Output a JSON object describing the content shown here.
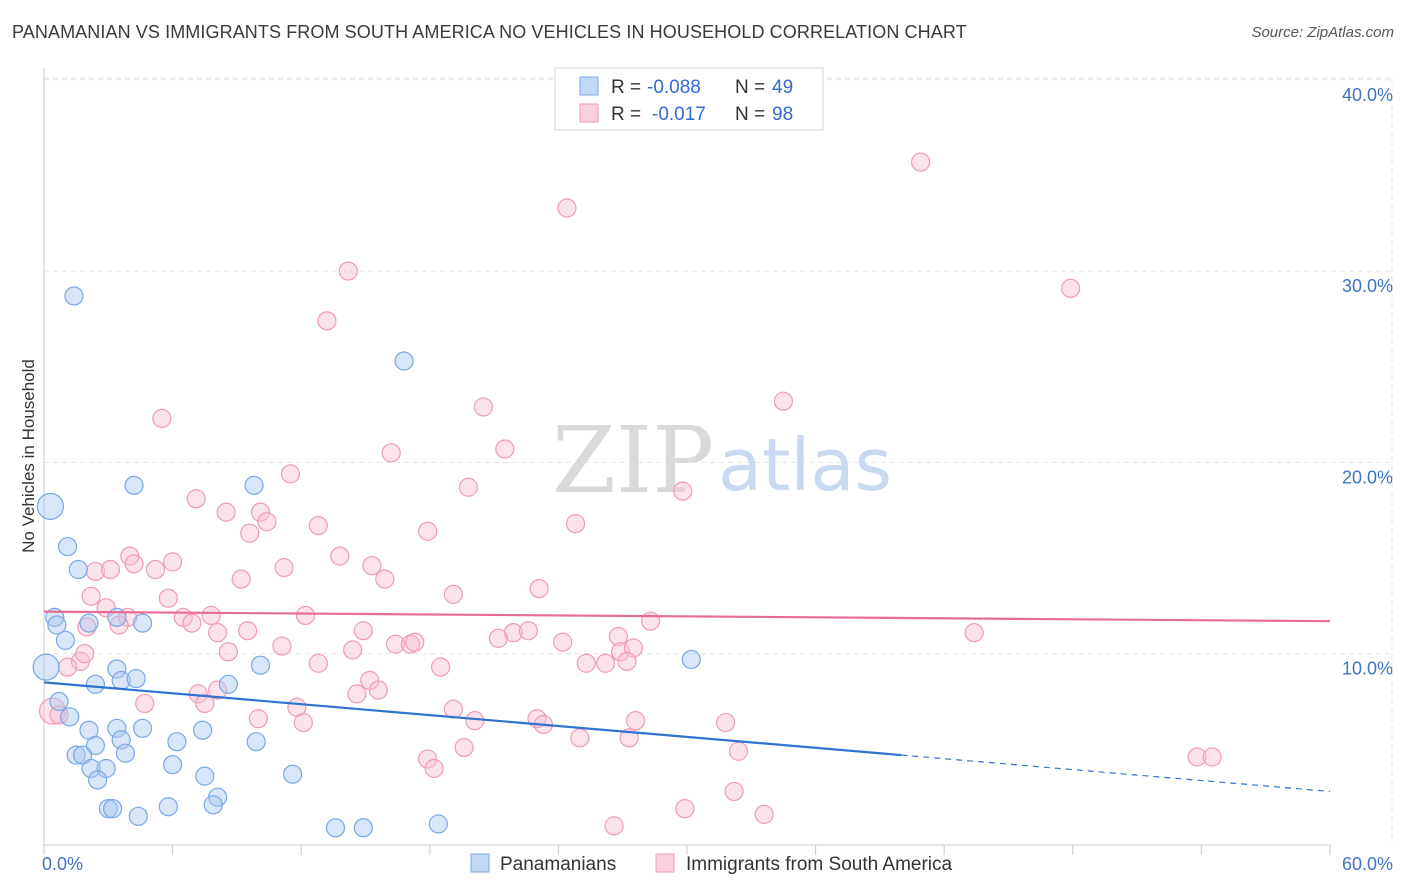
{
  "title": "PANAMANIAN VS IMMIGRANTS FROM SOUTH AMERICA NO VEHICLES IN HOUSEHOLD CORRELATION CHART",
  "source": "Source: ZipAtlas.com",
  "watermark": {
    "zip": "ZIP",
    "atlas": "atlas"
  },
  "legend": {
    "r_label": "R =",
    "n_label": "N =",
    "rows": [
      {
        "series": "Panamanians",
        "r": "-0.088",
        "n": "49"
      },
      {
        "series": "Immigrants from South America",
        "r": "-0.017",
        "n": "98"
      }
    ]
  },
  "chart_data": {
    "type": "scatter",
    "title": "PANAMANIAN VS IMMIGRANTS FROM SOUTH AMERICA NO VEHICLES IN HOUSEHOLD CORRELATION CHART",
    "xlabel": "",
    "ylabel": "No Vehicles in Household",
    "xlim": [
      0,
      60
    ],
    "ylim": [
      0,
      40.5
    ],
    "x_tick_labels": [
      "0.0%",
      "60.0%"
    ],
    "y_ticks": [
      10,
      20,
      30,
      40
    ],
    "y_tick_labels": [
      "10.0%",
      "20.0%",
      "30.0%",
      "40.0%"
    ],
    "grid": true,
    "legend_position": "top-center",
    "colors": {
      "Panamanians": "#7aa7e6",
      "Immigrants from South America": "#f09ab6",
      "blue_line": "#2f72d0",
      "pink_line": "#e56d96"
    },
    "series": [
      {
        "name": "Panamanians",
        "trend": {
          "x0": 0,
          "y0": 8.5,
          "x1": 60,
          "y1": 2.8,
          "solid_until": 40
        },
        "points": [
          {
            "x": 0.3,
            "y": 17.7,
            "big": true
          },
          {
            "x": 0.1,
            "y": 9.3,
            "big": true
          },
          {
            "x": 1.4,
            "y": 28.7
          },
          {
            "x": 16.8,
            "y": 25.3
          },
          {
            "x": 4.2,
            "y": 18.8
          },
          {
            "x": 9.8,
            "y": 18.8
          },
          {
            "x": 1.1,
            "y": 15.6
          },
          {
            "x": 1.6,
            "y": 14.4
          },
          {
            "x": 0.5,
            "y": 11.9
          },
          {
            "x": 0.6,
            "y": 11.5
          },
          {
            "x": 2.1,
            "y": 11.6
          },
          {
            "x": 4.6,
            "y": 11.6
          },
          {
            "x": 3.4,
            "y": 11.9
          },
          {
            "x": 1.0,
            "y": 10.7
          },
          {
            "x": 3.4,
            "y": 9.2
          },
          {
            "x": 10.1,
            "y": 9.4
          },
          {
            "x": 30.2,
            "y": 9.7
          },
          {
            "x": 2.4,
            "y": 8.4
          },
          {
            "x": 3.6,
            "y": 8.6
          },
          {
            "x": 4.3,
            "y": 8.7
          },
          {
            "x": 8.6,
            "y": 8.4
          },
          {
            "x": 0.7,
            "y": 7.5
          },
          {
            "x": 1.2,
            "y": 6.7
          },
          {
            "x": 2.1,
            "y": 6.0
          },
          {
            "x": 3.4,
            "y": 6.1
          },
          {
            "x": 4.6,
            "y": 6.1
          },
          {
            "x": 7.4,
            "y": 6.0
          },
          {
            "x": 2.4,
            "y": 5.2
          },
          {
            "x": 3.6,
            "y": 5.5
          },
          {
            "x": 6.2,
            "y": 5.4
          },
          {
            "x": 9.9,
            "y": 5.4
          },
          {
            "x": 1.5,
            "y": 4.7
          },
          {
            "x": 1.8,
            "y": 4.7
          },
          {
            "x": 3.8,
            "y": 4.8
          },
          {
            "x": 2.2,
            "y": 4.0
          },
          {
            "x": 2.9,
            "y": 4.0
          },
          {
            "x": 6.0,
            "y": 4.2
          },
          {
            "x": 2.5,
            "y": 3.4
          },
          {
            "x": 7.5,
            "y": 3.6
          },
          {
            "x": 11.6,
            "y": 3.7
          },
          {
            "x": 8.1,
            "y": 2.5
          },
          {
            "x": 3.0,
            "y": 1.9
          },
          {
            "x": 3.2,
            "y": 1.9
          },
          {
            "x": 5.8,
            "y": 2.0
          },
          {
            "x": 7.9,
            "y": 2.1
          },
          {
            "x": 4.4,
            "y": 1.5
          },
          {
            "x": 13.6,
            "y": 0.9
          },
          {
            "x": 14.9,
            "y": 0.9
          },
          {
            "x": 18.4,
            "y": 1.1
          }
        ]
      },
      {
        "name": "Immigrants from South America",
        "trend": {
          "x0": 0,
          "y0": 12.2,
          "x1": 60,
          "y1": 11.7,
          "solid_until": 60
        },
        "points": [
          {
            "x": 0.4,
            "y": 7.0,
            "big": true
          },
          {
            "x": 0.7,
            "y": 6.8
          },
          {
            "x": 40.9,
            "y": 35.7
          },
          {
            "x": 24.4,
            "y": 33.3
          },
          {
            "x": 14.2,
            "y": 30.0
          },
          {
            "x": 13.2,
            "y": 27.4
          },
          {
            "x": 47.9,
            "y": 29.1
          },
          {
            "x": 20.5,
            "y": 22.9
          },
          {
            "x": 34.5,
            "y": 23.2
          },
          {
            "x": 5.5,
            "y": 22.3
          },
          {
            "x": 16.2,
            "y": 20.5
          },
          {
            "x": 21.5,
            "y": 20.7
          },
          {
            "x": 11.5,
            "y": 19.4
          },
          {
            "x": 19.8,
            "y": 18.7
          },
          {
            "x": 29.8,
            "y": 18.5
          },
          {
            "x": 7.1,
            "y": 18.1
          },
          {
            "x": 8.5,
            "y": 17.4
          },
          {
            "x": 10.1,
            "y": 17.4
          },
          {
            "x": 10.4,
            "y": 16.9
          },
          {
            "x": 9.6,
            "y": 16.3
          },
          {
            "x": 12.8,
            "y": 16.7
          },
          {
            "x": 17.9,
            "y": 16.4
          },
          {
            "x": 24.8,
            "y": 16.8
          },
          {
            "x": 4.0,
            "y": 15.1
          },
          {
            "x": 4.2,
            "y": 14.7
          },
          {
            "x": 6.0,
            "y": 14.8
          },
          {
            "x": 13.8,
            "y": 15.1
          },
          {
            "x": 15.3,
            "y": 14.6
          },
          {
            "x": 11.2,
            "y": 14.5
          },
          {
            "x": 5.2,
            "y": 14.4
          },
          {
            "x": 2.4,
            "y": 14.3
          },
          {
            "x": 3.1,
            "y": 14.4
          },
          {
            "x": 9.2,
            "y": 13.9
          },
          {
            "x": 15.9,
            "y": 13.9
          },
          {
            "x": 23.1,
            "y": 13.4
          },
          {
            "x": 2.2,
            "y": 13.0
          },
          {
            "x": 5.8,
            "y": 12.9
          },
          {
            "x": 19.1,
            "y": 13.1
          },
          {
            "x": 2.9,
            "y": 12.4
          },
          {
            "x": 3.9,
            "y": 11.9
          },
          {
            "x": 6.5,
            "y": 11.9
          },
          {
            "x": 7.8,
            "y": 12.0
          },
          {
            "x": 12.2,
            "y": 12.0
          },
          {
            "x": 2.0,
            "y": 11.4
          },
          {
            "x": 3.5,
            "y": 11.5
          },
          {
            "x": 6.9,
            "y": 11.6
          },
          {
            "x": 28.3,
            "y": 11.7
          },
          {
            "x": 8.1,
            "y": 11.1
          },
          {
            "x": 9.5,
            "y": 11.2
          },
          {
            "x": 14.9,
            "y": 11.2
          },
          {
            "x": 21.9,
            "y": 11.1
          },
          {
            "x": 22.6,
            "y": 11.2
          },
          {
            "x": 21.2,
            "y": 10.8
          },
          {
            "x": 26.8,
            "y": 10.9
          },
          {
            "x": 43.4,
            "y": 11.1
          },
          {
            "x": 1.7,
            "y": 9.6
          },
          {
            "x": 1.9,
            "y": 10.0
          },
          {
            "x": 11.1,
            "y": 10.4
          },
          {
            "x": 14.4,
            "y": 10.2
          },
          {
            "x": 16.4,
            "y": 10.5
          },
          {
            "x": 17.1,
            "y": 10.5
          },
          {
            "x": 17.3,
            "y": 10.6
          },
          {
            "x": 24.2,
            "y": 10.6
          },
          {
            "x": 26.9,
            "y": 10.1
          },
          {
            "x": 27.5,
            "y": 10.3
          },
          {
            "x": 1.1,
            "y": 9.3
          },
          {
            "x": 8.6,
            "y": 10.1
          },
          {
            "x": 12.8,
            "y": 9.5
          },
          {
            "x": 18.5,
            "y": 9.3
          },
          {
            "x": 25.3,
            "y": 9.5
          },
          {
            "x": 26.2,
            "y": 9.5
          },
          {
            "x": 27.2,
            "y": 9.6
          },
          {
            "x": 15.2,
            "y": 8.6
          },
          {
            "x": 7.2,
            "y": 7.9
          },
          {
            "x": 8.1,
            "y": 8.1
          },
          {
            "x": 14.6,
            "y": 7.9
          },
          {
            "x": 15.6,
            "y": 8.1
          },
          {
            "x": 4.7,
            "y": 7.4
          },
          {
            "x": 7.5,
            "y": 7.4
          },
          {
            "x": 11.8,
            "y": 7.2
          },
          {
            "x": 19.1,
            "y": 7.1
          },
          {
            "x": 10.0,
            "y": 6.6
          },
          {
            "x": 12.1,
            "y": 6.4
          },
          {
            "x": 20.1,
            "y": 6.5
          },
          {
            "x": 23.0,
            "y": 6.6
          },
          {
            "x": 23.3,
            "y": 6.3
          },
          {
            "x": 27.6,
            "y": 6.5
          },
          {
            "x": 31.8,
            "y": 6.4
          },
          {
            "x": 25.0,
            "y": 5.6
          },
          {
            "x": 27.3,
            "y": 5.6
          },
          {
            "x": 19.6,
            "y": 5.1
          },
          {
            "x": 32.4,
            "y": 4.9
          },
          {
            "x": 17.9,
            "y": 4.5
          },
          {
            "x": 18.2,
            "y": 4.0
          },
          {
            "x": 53.8,
            "y": 4.6
          },
          {
            "x": 54.5,
            "y": 4.6
          },
          {
            "x": 32.2,
            "y": 2.8
          },
          {
            "x": 29.9,
            "y": 1.9
          },
          {
            "x": 33.6,
            "y": 1.6
          },
          {
            "x": 26.6,
            "y": 1.0
          }
        ]
      }
    ]
  }
}
